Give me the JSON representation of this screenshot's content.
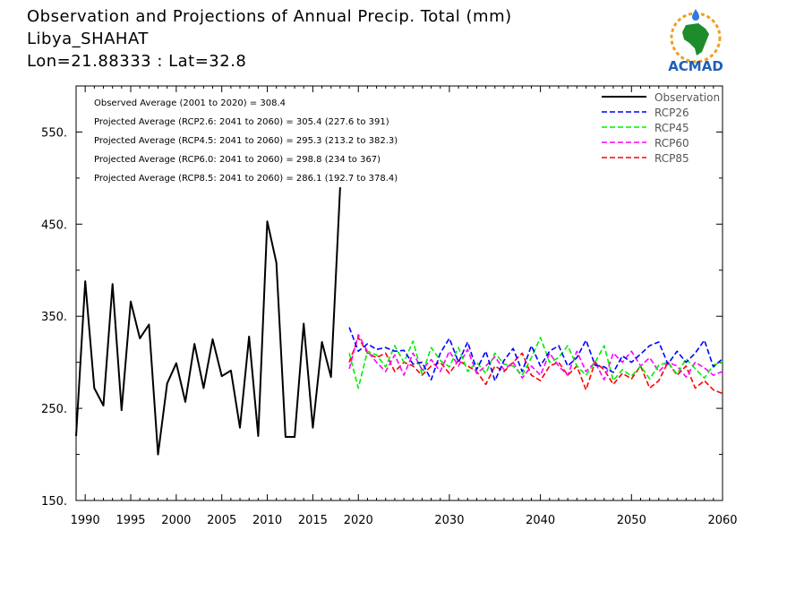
{
  "header": {
    "title": "Observation and Projections of Annual Precip. Total (mm)",
    "location": "Libya_SHAHAT",
    "coords": "Lon=21.88333 : Lat=32.8"
  },
  "logo": {
    "text": "ACMAD"
  },
  "colors": {
    "Observation": "#000000",
    "RCP26": "#0000ff",
    "RCP45": "#00ee00",
    "RCP60": "#ff00ff",
    "RCP85": "#ff0000"
  },
  "chart_data": {
    "type": "line",
    "xlim": [
      1989,
      2060
    ],
    "ylim": [
      150,
      600
    ],
    "xticks": [
      1990,
      1995,
      2000,
      2005,
      2010,
      2015,
      2020,
      2030,
      2040,
      2050,
      2060
    ],
    "xtick_labels": [
      "1990",
      "1995",
      "2000",
      "2005",
      "2010",
      "2015",
      "2020",
      "2030",
      "2040",
      "2050",
      "2060"
    ],
    "yticks": [
      150,
      250,
      350,
      450,
      550
    ],
    "ytick_labels": [
      "150.",
      "250.",
      "350.",
      "450.",
      "550."
    ],
    "grid": false,
    "legend_position": "top-right",
    "legend": [
      "Observation",
      "RCP26",
      "RCP45",
      "RCP60",
      "RCP85"
    ],
    "stats": [
      "Observed Average (2001 to 2020) = 308.4",
      "Projected Average (RCP2.6: 2041 to 2060) = 305.4 (227.6 to 391)",
      "Projected Average (RCP4.5: 2041 to 2060) = 295.3 (213.2 to 382.3)",
      "Projected Average (RCP6.0: 2041 to 2060) = 298.8 (234 to 367)",
      "Projected Average (RCP8.5: 2041 to 2060) = 286.1 (192.7 to 378.4)"
    ],
    "series": [
      {
        "name": "Observation",
        "style": "solid",
        "x": [
          1989,
          1990,
          1991,
          1992,
          1993,
          1994,
          1995,
          1996,
          1997,
          1998,
          1999,
          2000,
          2001,
          2002,
          2003,
          2004,
          2005,
          2006,
          2007,
          2008,
          2009,
          2010,
          2011,
          2012,
          2013,
          2014,
          2015,
          2016,
          2017,
          2018,
          2019,
          2020
        ],
        "y": [
          220,
          388,
          272,
          253,
          385,
          248,
          366,
          326,
          341,
          200,
          277,
          299,
          257,
          320,
          272,
          325,
          285,
          291,
          229,
          328,
          220,
          453,
          408,
          219,
          219,
          342,
          229,
          322,
          284,
          490,
          null,
          null
        ]
      },
      {
        "name": "RCP26",
        "style": "dashed",
        "x": [
          2019,
          2020,
          2021,
          2022,
          2023,
          2024,
          2025,
          2026,
          2027,
          2028,
          2029,
          2030,
          2031,
          2032,
          2033,
          2034,
          2035,
          2036,
          2037,
          2038,
          2039,
          2040,
          2041,
          2042,
          2043,
          2044,
          2045,
          2046,
          2047,
          2048,
          2049,
          2050,
          2051,
          2052,
          2053,
          2054,
          2055,
          2056,
          2057,
          2058,
          2059,
          2060
        ],
        "y": [
          338,
          312,
          320,
          314,
          316,
          312,
          313,
          298,
          300,
          281,
          310,
          326,
          300,
          322,
          292,
          312,
          280,
          302,
          315,
          290,
          318,
          296,
          312,
          318,
          296,
          305,
          324,
          297,
          295,
          289,
          307,
          300,
          309,
          318,
          322,
          298,
          312,
          300,
          310,
          324,
          295,
          304
        ]
      },
      {
        "name": "RCP45",
        "style": "dashed",
        "x": [
          2019,
          2020,
          2021,
          2022,
          2023,
          2024,
          2025,
          2026,
          2027,
          2028,
          2029,
          2030,
          2031,
          2032,
          2033,
          2034,
          2035,
          2036,
          2037,
          2038,
          2039,
          2040,
          2041,
          2042,
          2043,
          2044,
          2045,
          2046,
          2047,
          2048,
          2049,
          2050,
          2051,
          2052,
          2053,
          2054,
          2055,
          2056,
          2057,
          2058,
          2059,
          2060
        ],
        "y": [
          310,
          272,
          312,
          308,
          295,
          318,
          300,
          323,
          287,
          316,
          302,
          295,
          316,
          290,
          300,
          288,
          310,
          298,
          296,
          286,
          305,
          327,
          300,
          305,
          318,
          296,
          286,
          300,
          318,
          280,
          292,
          285,
          296,
          282,
          297,
          300,
          287,
          304,
          293,
          283,
          297,
          300
        ]
      },
      {
        "name": "RCP60",
        "style": "dashed",
        "x": [
          2019,
          2020,
          2021,
          2022,
          2023,
          2024,
          2025,
          2026,
          2027,
          2028,
          2029,
          2030,
          2031,
          2032,
          2033,
          2034,
          2035,
          2036,
          2037,
          2038,
          2039,
          2040,
          2041,
          2042,
          2043,
          2044,
          2045,
          2046,
          2047,
          2048,
          2049,
          2050,
          2051,
          2052,
          2053,
          2054,
          2055,
          2056,
          2057,
          2058,
          2059,
          2060
        ],
        "y": [
          293,
          330,
          312,
          300,
          290,
          308,
          286,
          310,
          292,
          303,
          290,
          312,
          296,
          314,
          288,
          296,
          306,
          292,
          300,
          283,
          296,
          286,
          310,
          296,
          286,
          312,
          290,
          300,
          281,
          310,
          300,
          312,
          296,
          305,
          290,
          300,
          296,
          284,
          300,
          294,
          286,
          290
        ]
      },
      {
        "name": "RCP85",
        "style": "dashed",
        "x": [
          2019,
          2020,
          2021,
          2022,
          2023,
          2024,
          2025,
          2026,
          2027,
          2028,
          2029,
          2030,
          2031,
          2032,
          2033,
          2034,
          2035,
          2036,
          2037,
          2038,
          2039,
          2040,
          2041,
          2042,
          2043,
          2044,
          2045,
          2046,
          2047,
          2048,
          2049,
          2050,
          2051,
          2052,
          2053,
          2054,
          2055,
          2056,
          2057,
          2058,
          2059,
          2060
        ],
        "y": [
          300,
          327,
          310,
          305,
          310,
          290,
          300,
          296,
          286,
          296,
          300,
          288,
          302,
          296,
          290,
          276,
          296,
          290,
          300,
          310,
          286,
          280,
          296,
          300,
          286,
          296,
          270,
          300,
          292,
          276,
          288,
          282,
          296,
          272,
          280,
          300,
          286,
          296,
          272,
          280,
          270,
          266
        ]
      }
    ]
  }
}
